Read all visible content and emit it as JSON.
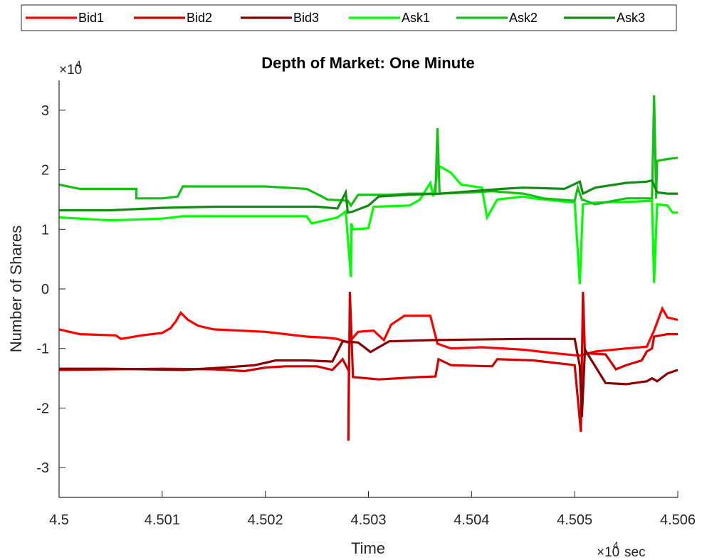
{
  "chart_data": {
    "type": "line",
    "title": "Depth of Market: One Minute",
    "xlabel": "Time",
    "ylabel": "Number of Shares",
    "x_exponent_text": "×10",
    "x_exponent_power": "4",
    "x_exponent_unit": "sec",
    "y_exponent_text": "×10",
    "y_exponent_power": "4",
    "xlim": [
      4.5,
      4.506
    ],
    "ylim": [
      -3.5,
      3.5
    ],
    "x_ticks": [
      4.5,
      4.501,
      4.502,
      4.503,
      4.504,
      4.505,
      4.506
    ],
    "x_tick_labels": [
      "4.5",
      "4.501",
      "4.502",
      "4.503",
      "4.504",
      "4.505",
      "4.506"
    ],
    "y_ticks": [
      -3,
      -2,
      -1,
      0,
      1,
      2,
      3
    ],
    "y_tick_labels": [
      "-3",
      "-2",
      "-1",
      "0",
      "1",
      "2",
      "3"
    ],
    "grid": false,
    "legend_position": "top",
    "series": [
      {
        "name": "Bid1",
        "color": "#ff0000",
        "points": [
          [
            4.5,
            -0.68
          ],
          [
            4.5002,
            -0.76
          ],
          [
            4.50055,
            -0.78
          ],
          [
            4.5006,
            -0.84
          ],
          [
            4.5008,
            -0.78
          ],
          [
            4.501,
            -0.74
          ],
          [
            4.50108,
            -0.66
          ],
          [
            4.50113,
            -0.55
          ],
          [
            4.50118,
            -0.4
          ],
          [
            4.50125,
            -0.52
          ],
          [
            4.50135,
            -0.62
          ],
          [
            4.5015,
            -0.68
          ],
          [
            4.502,
            -0.72
          ],
          [
            4.5024,
            -0.8
          ],
          [
            4.5026,
            -0.82
          ],
          [
            4.5027,
            -0.84
          ],
          [
            4.5028,
            -0.9
          ],
          [
            4.50282,
            -0.88
          ],
          [
            4.5029,
            -0.72
          ],
          [
            4.50305,
            -0.7
          ],
          [
            4.5031,
            -0.78
          ],
          [
            4.50315,
            -0.86
          ],
          [
            4.50322,
            -0.6
          ],
          [
            4.50335,
            -0.45
          ],
          [
            4.5036,
            -0.45
          ],
          [
            4.50367,
            -0.92
          ],
          [
            4.5038,
            -1.0
          ],
          [
            4.5041,
            -0.98
          ],
          [
            4.5045,
            -1.02
          ],
          [
            4.5048,
            -1.08
          ],
          [
            4.50505,
            -1.12
          ],
          [
            4.5052,
            -1.05
          ],
          [
            4.5055,
            -1.0
          ],
          [
            4.5057,
            -0.97
          ],
          [
            4.50577,
            -0.7
          ],
          [
            4.50585,
            -0.33
          ],
          [
            4.5059,
            -0.48
          ],
          [
            4.506,
            -0.52
          ]
        ]
      },
      {
        "name": "Bid2",
        "color": "#d40000",
        "points": [
          [
            4.5,
            -1.36
          ],
          [
            4.501,
            -1.34
          ],
          [
            4.5015,
            -1.35
          ],
          [
            4.5018,
            -1.38
          ],
          [
            4.502,
            -1.32
          ],
          [
            4.5022,
            -1.3
          ],
          [
            4.5025,
            -1.3
          ],
          [
            4.50265,
            -1.36
          ],
          [
            4.50275,
            -1.18
          ],
          [
            4.50281,
            -1.38
          ],
          [
            4.502805,
            -2.55
          ],
          [
            4.50282,
            -0.05
          ],
          [
            4.50285,
            -1.48
          ],
          [
            4.5031,
            -1.52
          ],
          [
            4.5035,
            -1.48
          ],
          [
            4.50365,
            -1.47
          ],
          [
            4.50368,
            -1.18
          ],
          [
            4.5038,
            -1.28
          ],
          [
            4.5042,
            -1.3
          ],
          [
            4.50425,
            -1.18
          ],
          [
            4.5046,
            -1.2
          ],
          [
            4.505,
            -1.28
          ],
          [
            4.50506,
            -2.4
          ],
          [
            4.50508,
            -0.05
          ],
          [
            4.5051,
            -1.08
          ],
          [
            4.5053,
            -1.1
          ],
          [
            4.5054,
            -1.35
          ],
          [
            4.5055,
            -1.28
          ],
          [
            4.50565,
            -1.2
          ],
          [
            4.5057,
            -1.05
          ],
          [
            4.50575,
            -1.0
          ],
          [
            4.50577,
            -0.8
          ],
          [
            4.5059,
            -0.76
          ],
          [
            4.506,
            -0.76
          ]
        ]
      },
      {
        "name": "Bid3",
        "color": "#8b0000",
        "points": [
          [
            4.5,
            -1.34
          ],
          [
            4.5005,
            -1.34
          ],
          [
            4.5012,
            -1.36
          ],
          [
            4.5016,
            -1.32
          ],
          [
            4.5019,
            -1.28
          ],
          [
            4.5021,
            -1.2
          ],
          [
            4.5024,
            -1.2
          ],
          [
            4.50265,
            -1.22
          ],
          [
            4.50275,
            -0.88
          ],
          [
            4.5029,
            -0.9
          ],
          [
            4.50302,
            -1.06
          ],
          [
            4.5031,
            -0.98
          ],
          [
            4.5032,
            -0.88
          ],
          [
            4.5036,
            -0.86
          ],
          [
            4.504,
            -0.85
          ],
          [
            4.5045,
            -0.84
          ],
          [
            4.505,
            -0.84
          ],
          [
            4.50505,
            -1.3
          ],
          [
            4.50507,
            -2.15
          ],
          [
            4.5051,
            -1.02
          ],
          [
            4.5053,
            -1.58
          ],
          [
            4.5055,
            -1.6
          ],
          [
            4.5057,
            -1.55
          ],
          [
            4.50575,
            -1.5
          ],
          [
            4.5058,
            -1.55
          ],
          [
            4.5059,
            -1.42
          ],
          [
            4.506,
            -1.36
          ]
        ]
      },
      {
        "name": "Ask1",
        "color": "#00ff00",
        "points": [
          [
            4.5,
            1.2
          ],
          [
            4.5005,
            1.15
          ],
          [
            4.501,
            1.18
          ],
          [
            4.5012,
            1.22
          ],
          [
            4.502,
            1.22
          ],
          [
            4.5024,
            1.22
          ],
          [
            4.50245,
            1.1
          ],
          [
            4.5027,
            1.2
          ],
          [
            4.50278,
            1.3
          ],
          [
            4.50283,
            0.2
          ],
          [
            4.502835,
            1.1
          ],
          [
            4.50285,
            1.0
          ],
          [
            4.503,
            1.02
          ],
          [
            4.50305,
            1.38
          ],
          [
            4.5034,
            1.4
          ],
          [
            4.5035,
            1.5
          ],
          [
            4.5036,
            1.78
          ],
          [
            4.50363,
            1.55
          ],
          [
            4.50368,
            2.05
          ],
          [
            4.5037,
            2.05
          ],
          [
            4.5038,
            1.95
          ],
          [
            4.5039,
            1.75
          ],
          [
            4.5041,
            1.7
          ],
          [
            4.50415,
            1.2
          ],
          [
            4.50425,
            1.5
          ],
          [
            4.5045,
            1.55
          ],
          [
            4.5046,
            1.52
          ],
          [
            4.505,
            1.45
          ],
          [
            4.50505,
            0.08
          ],
          [
            4.50508,
            1.42
          ],
          [
            4.5052,
            1.45
          ],
          [
            4.5055,
            1.46
          ],
          [
            4.50575,
            1.48
          ],
          [
            4.50577,
            0.1
          ],
          [
            4.5058,
            1.42
          ],
          [
            4.5059,
            1.4
          ],
          [
            4.50595,
            1.28
          ],
          [
            4.506,
            1.28
          ]
        ]
      },
      {
        "name": "Ask2",
        "color": "#16c016",
        "points": [
          [
            4.5,
            1.75
          ],
          [
            4.5002,
            1.68
          ],
          [
            4.50075,
            1.68
          ],
          [
            4.50075,
            1.52
          ],
          [
            4.501,
            1.52
          ],
          [
            4.50115,
            1.55
          ],
          [
            4.5012,
            1.72
          ],
          [
            4.502,
            1.72
          ],
          [
            4.5024,
            1.68
          ],
          [
            4.50255,
            1.55
          ],
          [
            4.5026,
            1.5
          ],
          [
            4.5028,
            1.48
          ],
          [
            4.50283,
            1.4
          ],
          [
            4.5029,
            1.58
          ],
          [
            4.5032,
            1.58
          ],
          [
            4.5034,
            1.6
          ],
          [
            4.50365,
            1.6
          ],
          [
            4.50367,
            2.7
          ],
          [
            4.50369,
            1.6
          ],
          [
            4.504,
            1.62
          ],
          [
            4.5042,
            1.64
          ],
          [
            4.5045,
            1.6
          ],
          [
            4.5047,
            1.52
          ],
          [
            4.505,
            1.48
          ],
          [
            4.50503,
            1.7
          ],
          [
            4.50507,
            1.5
          ],
          [
            4.5052,
            1.42
          ],
          [
            4.5055,
            1.52
          ],
          [
            4.50575,
            1.52
          ],
          [
            4.50577,
            3.25
          ],
          [
            4.50579,
            1.52
          ],
          [
            4.5058,
            2.15
          ],
          [
            4.5059,
            2.18
          ],
          [
            4.506,
            2.2
          ]
        ]
      },
      {
        "name": "Ask3",
        "color": "#148b14",
        "points": [
          [
            4.5,
            1.32
          ],
          [
            4.5005,
            1.32
          ],
          [
            4.501,
            1.36
          ],
          [
            4.5015,
            1.38
          ],
          [
            4.502,
            1.38
          ],
          [
            4.5025,
            1.38
          ],
          [
            4.5027,
            1.35
          ],
          [
            4.50278,
            1.62
          ],
          [
            4.5028,
            1.28
          ],
          [
            4.50285,
            1.3
          ],
          [
            4.503,
            1.4
          ],
          [
            4.5031,
            1.55
          ],
          [
            4.5034,
            1.58
          ],
          [
            4.5037,
            1.6
          ],
          [
            4.504,
            1.64
          ],
          [
            4.5043,
            1.68
          ],
          [
            4.5045,
            1.7
          ],
          [
            4.5049,
            1.68
          ],
          [
            4.50505,
            1.8
          ],
          [
            4.50508,
            1.6
          ],
          [
            4.5052,
            1.7
          ],
          [
            4.5055,
            1.78
          ],
          [
            4.5057,
            1.8
          ],
          [
            4.50575,
            1.82
          ],
          [
            4.5058,
            1.62
          ],
          [
            4.5059,
            1.6
          ],
          [
            4.506,
            1.6
          ]
        ]
      }
    ]
  }
}
